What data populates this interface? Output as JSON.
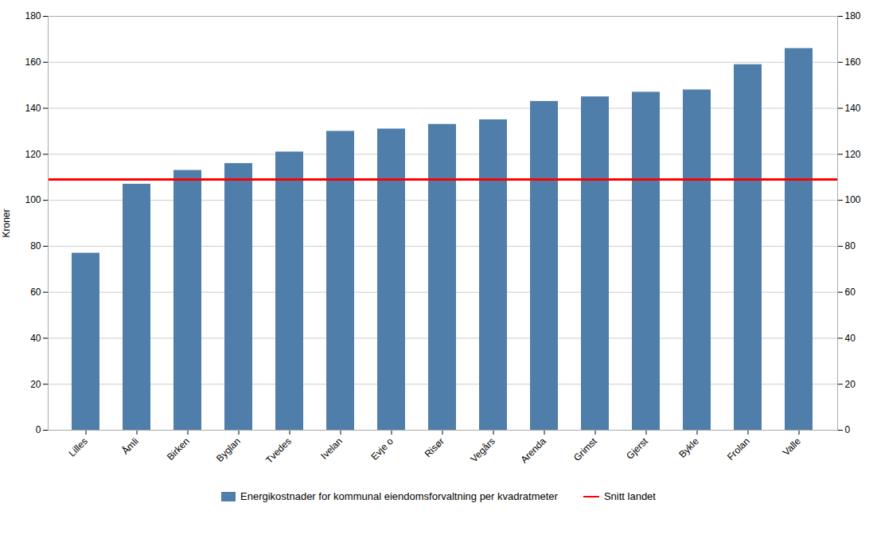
{
  "chart_data": {
    "type": "bar",
    "categories": [
      "Lilles",
      "Åmli",
      "Birken",
      "Byglan",
      "Tvedes",
      "Ivelan",
      "Evje o",
      "Risør",
      "Vegårs",
      "Arenda",
      "Grimst",
      "Gjerst",
      "Bykle",
      "Frolan",
      "Valle"
    ],
    "series": [
      {
        "name": "Energikostnader for kommunal eiendomsforvaltning per kvadratmeter",
        "type": "bar",
        "color": "#4F7EAA",
        "values": [
          77,
          107,
          113,
          116,
          121,
          130,
          131,
          133,
          135,
          143,
          145,
          147,
          148,
          159,
          166
        ]
      },
      {
        "name": "Snitt landet",
        "type": "line",
        "color": "#FF0000",
        "values": [
          109,
          109,
          109,
          109,
          109,
          109,
          109,
          109,
          109,
          109,
          109,
          109,
          109,
          109,
          109
        ]
      }
    ],
    "ylabel": "Kroner",
    "ylim": [
      0,
      180
    ],
    "yticks": [
      0,
      20,
      40,
      60,
      80,
      100,
      120,
      140,
      160,
      180
    ],
    "grid": true,
    "legend": "bottom"
  }
}
